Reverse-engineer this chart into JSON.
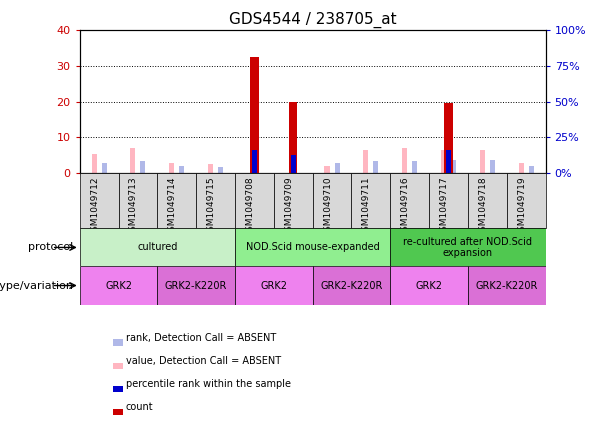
{
  "title": "GDS4544 / 238705_at",
  "samples": [
    "GSM1049712",
    "GSM1049713",
    "GSM1049714",
    "GSM1049715",
    "GSM1049708",
    "GSM1049709",
    "GSM1049710",
    "GSM1049711",
    "GSM1049716",
    "GSM1049717",
    "GSM1049718",
    "GSM1049719"
  ],
  "count_values": [
    0,
    0,
    0,
    0,
    32.5,
    20.0,
    0,
    0,
    0,
    19.5,
    0,
    0
  ],
  "percentile_values": [
    0,
    0,
    0,
    0,
    16.5,
    13.0,
    0,
    0,
    0,
    16.5,
    0,
    0
  ],
  "absent_value_values": [
    5.5,
    7.0,
    3.0,
    2.5,
    0,
    0,
    2.0,
    6.5,
    7.0,
    6.5,
    6.5,
    3.0
  ],
  "absent_rank_values": [
    7.0,
    8.5,
    5.5,
    4.5,
    0,
    0,
    7.5,
    8.5,
    8.5,
    9.0,
    9.0,
    5.5
  ],
  "ylim_left": [
    0,
    40
  ],
  "ylim_right": [
    0,
    100
  ],
  "yticks_left": [
    0,
    10,
    20,
    30,
    40
  ],
  "yticks_right": [
    0,
    25,
    50,
    75,
    100
  ],
  "ytick_labels_left": [
    "0",
    "10",
    "20",
    "30",
    "40"
  ],
  "ytick_labels_right": [
    "0%",
    "25%",
    "50%",
    "75%",
    "100%"
  ],
  "protocol_groups": [
    {
      "label": "cultured",
      "start": 0,
      "end": 4,
      "color": "#c8f0c8"
    },
    {
      "label": "NOD.Scid mouse-expanded",
      "start": 4,
      "end": 8,
      "color": "#90ee90"
    },
    {
      "label": "re-cultured after NOD.Scid\nexpansion",
      "start": 8,
      "end": 12,
      "color": "#50c850"
    }
  ],
  "genotype_groups": [
    {
      "label": "GRK2",
      "start": 0,
      "end": 2,
      "color": "#ee82ee"
    },
    {
      "label": "GRK2-K220R",
      "start": 2,
      "end": 4,
      "color": "#da70d6"
    },
    {
      "label": "GRK2",
      "start": 4,
      "end": 6,
      "color": "#ee82ee"
    },
    {
      "label": "GRK2-K220R",
      "start": 6,
      "end": 8,
      "color": "#da70d6"
    },
    {
      "label": "GRK2",
      "start": 8,
      "end": 10,
      "color": "#ee82ee"
    },
    {
      "label": "GRK2-K220R",
      "start": 10,
      "end": 12,
      "color": "#da70d6"
    }
  ],
  "label_protocol": "protocol",
  "label_genotype": "genotype/variation",
  "count_color": "#cc0000",
  "percentile_color": "#0000cc",
  "absent_value_color": "#ffb6c1",
  "absent_rank_color": "#b0b8e8",
  "grid_color": "#000000",
  "background_color": "#ffffff",
  "tick_color_left": "#cc0000",
  "tick_color_right": "#0000cc",
  "sample_box_color": "#d8d8d8",
  "legend_items": [
    {
      "label": "count",
      "color": "#cc0000"
    },
    {
      "label": "percentile rank within the sample",
      "color": "#0000cc"
    },
    {
      "label": "value, Detection Call = ABSENT",
      "color": "#ffb6c1"
    },
    {
      "label": "rank, Detection Call = ABSENT",
      "color": "#b0b8e8"
    }
  ]
}
